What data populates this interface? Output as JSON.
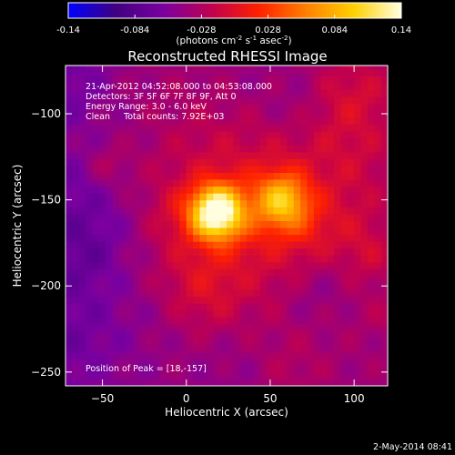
{
  "chart_data": {
    "type": "heatmap",
    "title": "Reconstructed RHESSI Image",
    "colorbar": {
      "min": -0.14,
      "max": 0.14,
      "ticks": [
        "-0.14",
        "-0.084",
        "-0.028",
        "0.028",
        "0.084",
        "0.14"
      ],
      "colormap": [
        "#0000ff",
        "#400080",
        "#7a00a0",
        "#c00050",
        "#ff2000",
        "#ff8000",
        "#ffd000",
        "#ffffe0"
      ]
    },
    "unit_label": {
      "prefix": "(photons cm",
      "exp1": "-2",
      "mid1": " s",
      "exp2": "-1",
      "mid2": " asec",
      "exp3": "-2",
      "suffix": ")"
    },
    "xlabel": "Heliocentric X (arcsec)",
    "ylabel": "Heliocentric Y (arcsec)",
    "xlim": [
      -72,
      120
    ],
    "ylim": [
      -258,
      -72
    ],
    "xticks": [
      -50,
      0,
      50,
      100
    ],
    "yticks": [
      -100,
      -150,
      -200,
      -250
    ],
    "sources": [
      {
        "x": 18,
        "y": -157,
        "peak": 1.0
      },
      {
        "x": 57,
        "y": -150,
        "peak": 0.55
      }
    ],
    "annotations": [
      "21-Apr-2012 04:52:08.000 to 04:53:08.000",
      "Detectors: 3F 5F 6F 7F 8F 9F, Att 0",
      "Energy Range: 3.0 - 6.0 keV",
      "Clean     Total counts: 7.92E+03"
    ],
    "peak_label": "Position of Peak = [18,-157]",
    "footer_date": "2-May-2014 08:41"
  }
}
